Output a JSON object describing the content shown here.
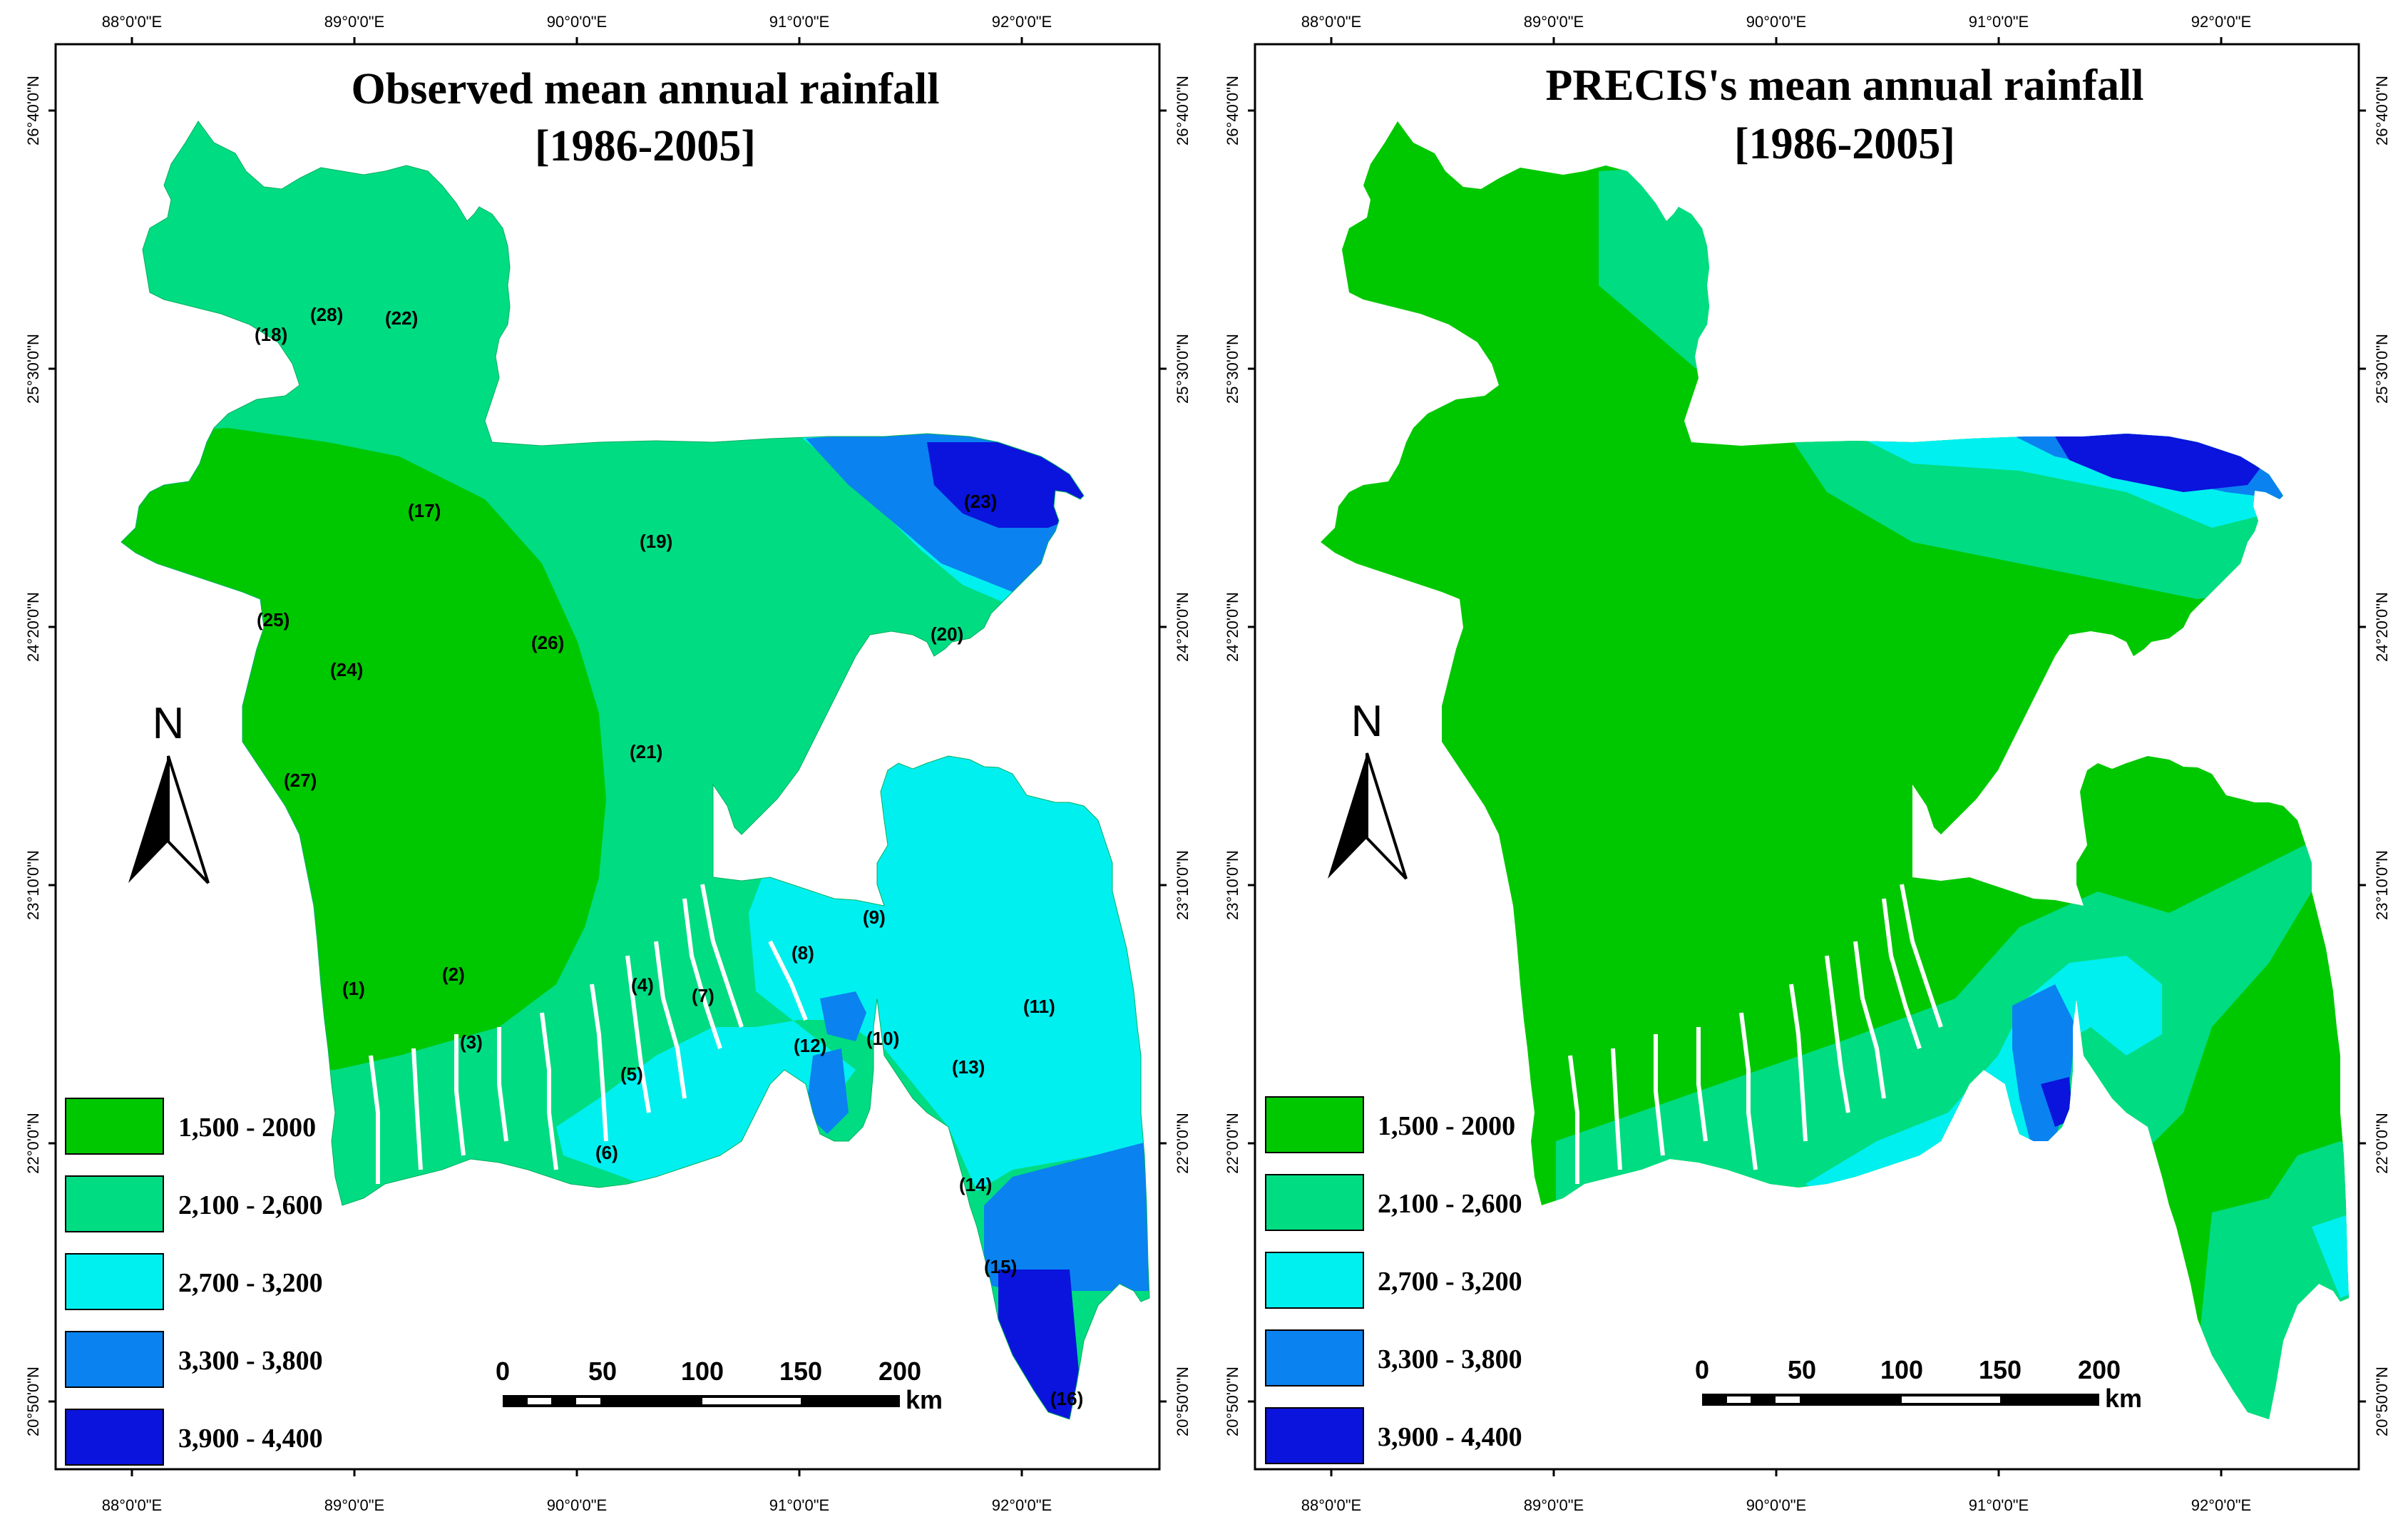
{
  "colors": {
    "class1": "#00c800",
    "class2": "#00dc82",
    "class3": "#00f0f0",
    "class4": "#0a82f0",
    "class5": "#0a14dc",
    "frame": "#000000"
  },
  "legend": [
    {
      "label": "1,500 - 2000",
      "color": "#00c800"
    },
    {
      "label": "2,100 - 2,600",
      "color": "#00dc82"
    },
    {
      "label": "2,700 - 3,200",
      "color": "#00f0f0"
    },
    {
      "label": "3,300 - 3,800",
      "color": "#0a82f0"
    },
    {
      "label": "3,900 - 4,400",
      "color": "#0a14dc"
    }
  ],
  "axes": {
    "lon_labels": [
      "88°0'0\"E",
      "89°0'0\"E",
      "90°0'0\"E",
      "91°0'0\"E",
      "92°0'0\"E"
    ],
    "lat_labels": [
      "26°40'0\"N",
      "25°30'0\"N",
      "24°20'0\"N",
      "23°10'0\"N",
      "22°0'0\"N",
      "20°50'0\"N"
    ]
  },
  "north_arrow": {
    "label": "N"
  },
  "scale_bar": {
    "ticks": [
      "0",
      "50",
      "100",
      "150",
      "200"
    ],
    "unit": "km"
  },
  "maps": [
    {
      "id": "observed",
      "title_line1": "Observed mean annual rainfall",
      "title_line2": "[1986-2005]",
      "stations": [
        "(1)",
        "(2)",
        "(3)",
        "(4)",
        "(5)",
        "(6)",
        "(7)",
        "(8)",
        "(9)",
        "(10)",
        "(11)",
        "(12)",
        "(13)",
        "(14)",
        "(15)",
        "(16)",
        "(17)",
        "(18)",
        "(19)",
        "(20)",
        "(21)",
        "(22)",
        "(23)",
        "(24)",
        "(25)",
        "(26)",
        "(27)",
        "(28)"
      ]
    },
    {
      "id": "precis",
      "title_line1": "PRECIS's mean annual rainfall",
      "title_line2": "[1986-2005]",
      "stations": []
    }
  ]
}
